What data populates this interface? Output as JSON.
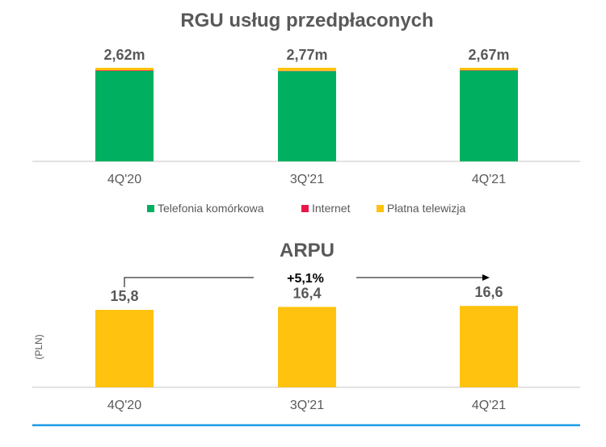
{
  "chart_data": [
    {
      "type": "bar",
      "stacked": true,
      "title": "RGU usług przedpłaconych",
      "categories": [
        "4Q'20",
        "3Q'21",
        "4Q'21"
      ],
      "totals_labels": [
        "2,62m",
        "2,77m",
        "2,67m"
      ],
      "series": [
        {
          "name": "Telefonia komórkowa",
          "color": "#00b060",
          "values": [
            2.53,
            2.67,
            2.59
          ]
        },
        {
          "name": "Internet",
          "color": "#e8174a",
          "values": [
            0.02,
            0.01,
            0.01
          ]
        },
        {
          "name": "Płatna telewizja",
          "color": "#ffc20e",
          "values": [
            0.07,
            0.09,
            0.07
          ]
        }
      ],
      "legend": "bottom",
      "grid": false
    },
    {
      "type": "bar",
      "title": "ARPU",
      "ylabel": "(PLN)",
      "categories": [
        "4Q'20",
        "3Q'21",
        "4Q'21"
      ],
      "values": [
        15.8,
        16.4,
        16.6
      ],
      "value_labels": [
        "15,8",
        "16,4",
        "16,6"
      ],
      "color": "#ffc20e",
      "annotation": "+5,1%",
      "grid": false
    }
  ],
  "colors": {
    "axis": "#d9d9d9",
    "footer_line": "#1a9be6",
    "text": "#595959"
  }
}
